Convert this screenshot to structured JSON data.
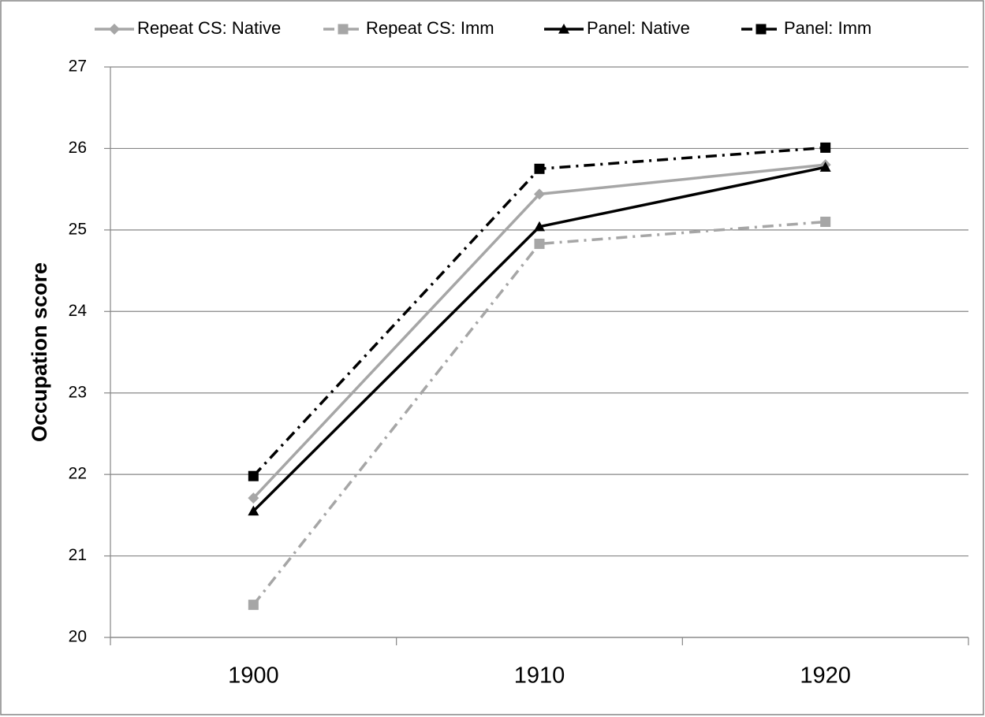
{
  "chart_data": {
    "type": "line",
    "y_label": "Occupation score",
    "categories": [
      "1900",
      "1910",
      "1920"
    ],
    "series": [
      {
        "name": "Repeat CS: Native",
        "color": "#a6a6a6",
        "marker": "diamond",
        "dash": "solid",
        "values": [
          21.71,
          25.44,
          25.8
        ]
      },
      {
        "name": "Repeat CS: Imm",
        "color": "#a6a6a6",
        "marker": "square",
        "dash": "dashdot",
        "values": [
          20.4,
          24.83,
          25.1
        ]
      },
      {
        "name": "Panel: Native",
        "color": "#000000",
        "marker": "triangle",
        "dash": "solid",
        "values": [
          21.55,
          25.04,
          25.77
        ]
      },
      {
        "name": "Panel: Imm",
        "color": "#000000",
        "marker": "square",
        "dash": "dashdot",
        "values": [
          21.98,
          25.75,
          26.01
        ]
      }
    ],
    "ylim": [
      20,
      27
    ],
    "yticks": [
      20,
      21,
      22,
      23,
      24,
      25,
      26,
      27
    ],
    "grid": true,
    "legend": "top"
  }
}
